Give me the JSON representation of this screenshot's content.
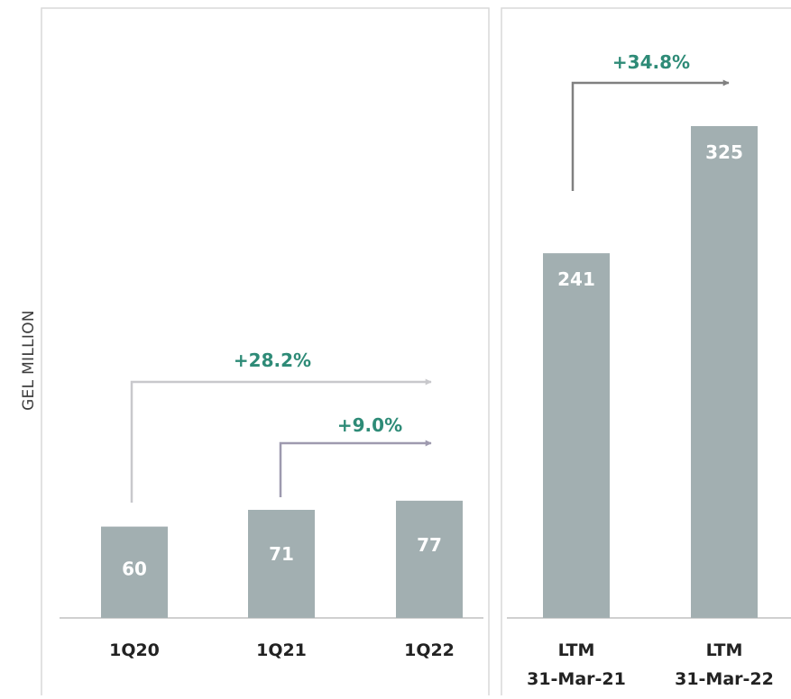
{
  "chart_data": [
    {
      "type": "bar",
      "categories": [
        "1Q20",
        "1Q21",
        "1Q22"
      ],
      "values": [
        60,
        71,
        77
      ],
      "value_labels": [
        "60",
        "71",
        "77"
      ],
      "ylabel": "GEL MILLION",
      "growth_annotations": [
        {
          "from": "1Q20",
          "to": "1Q22",
          "label": "+28.2%"
        },
        {
          "from": "1Q21",
          "to": "1Q22",
          "label": "+9.0%"
        }
      ]
    },
    {
      "type": "bar",
      "categories": [
        [
          "LTM",
          "31-Mar-21"
        ],
        [
          "LTM",
          "31-Mar-22"
        ]
      ],
      "values": [
        241,
        325
      ],
      "value_labels": [
        "241",
        "325"
      ],
      "growth_annotations": [
        {
          "from": "LTM 31-Mar-21",
          "to": "LTM 31-Mar-22",
          "label": "+34.8%"
        }
      ]
    }
  ],
  "colors": {
    "bar": "#a2afb1",
    "growth_text": "#2e8b77",
    "frame": "#d9d9d9",
    "arrow_28": "#c8c8cc",
    "arrow_9": "#9e9aaf",
    "arrow_348": "#808080"
  }
}
